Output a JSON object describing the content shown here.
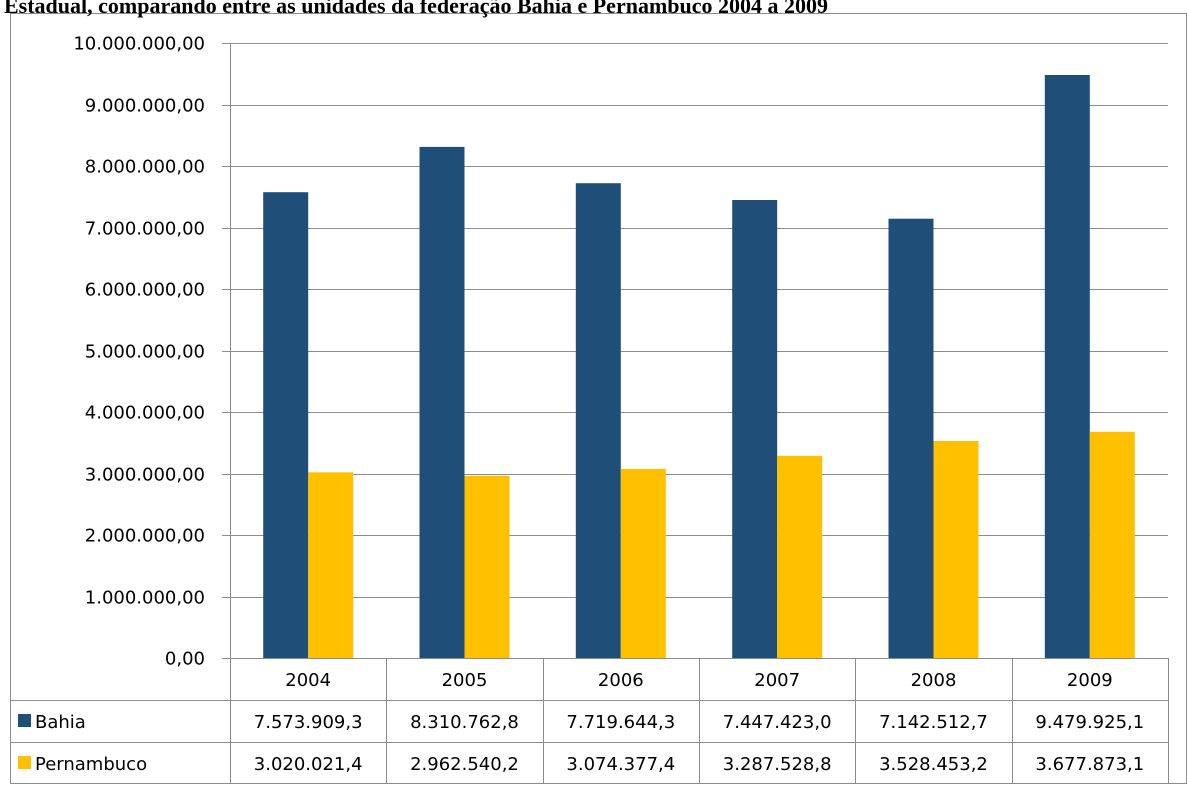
{
  "chart_data": {
    "type": "bar",
    "title": "Estadual, comparando entre as unidades da federação Bahia e Pernambuco 2004 a 2009",
    "categories": [
      "2004",
      "2005",
      "2006",
      "2007",
      "2008",
      "2009"
    ],
    "series": [
      {
        "name": "Bahia",
        "color": "#1F4E79",
        "values": [
          7573909.3,
          8310762.8,
          7719644.3,
          7447423.0,
          7142512.7,
          9479925.1
        ],
        "labels": [
          "7.573.909,3",
          "8.310.762,8",
          "7.719.644,3",
          "7.447.423,0",
          "7.142.512,7",
          "9.479.925,1"
        ]
      },
      {
        "name": "Pernambuco",
        "color": "#FFC000",
        "values": [
          3020021.4,
          2962540.2,
          3074377.4,
          3287528.8,
          3528453.2,
          3677873.1
        ],
        "labels": [
          "3.020.021,4",
          "2.962.540,2",
          "3.074.377,4",
          "3.287.528,8",
          "3.528.453,2",
          "3.677.873,1"
        ]
      }
    ],
    "ylim": [
      0,
      10000000
    ],
    "yticks": [
      0,
      1000000,
      2000000,
      3000000,
      4000000,
      5000000,
      6000000,
      7000000,
      8000000,
      9000000,
      10000000
    ],
    "ytick_labels": [
      "0,00",
      "1.000.000,00",
      "2.000.000,00",
      "3.000.000,00",
      "4.000.000,00",
      "5.000.000,00",
      "6.000.000,00",
      "7.000.000,00",
      "8.000.000,00",
      "9.000.000,00",
      "10.000.000,00"
    ],
    "grid": true,
    "legend": "data-table"
  }
}
